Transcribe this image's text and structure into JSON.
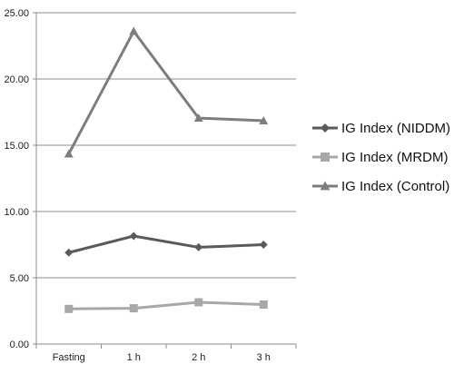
{
  "chart_data": {
    "type": "line",
    "categories": [
      "Fasting",
      "1 h",
      "2 h",
      "3 h"
    ],
    "yticks": [
      "0.00",
      "5.00",
      "10.00",
      "15.00",
      "20.00",
      "25.00"
    ],
    "ylim": [
      0,
      25
    ],
    "grid": true,
    "legend_position": "right",
    "series": [
      {
        "name": "IG Index (NIDDM)",
        "values": [
          6.9,
          8.15,
          7.3,
          7.5
        ],
        "color": "#5a5a5a",
        "marker": "diamond"
      },
      {
        "name": "IG Index (MRDM)",
        "values": [
          2.65,
          2.7,
          3.15,
          2.98
        ],
        "color": "#a8a8a8",
        "marker": "square"
      },
      {
        "name": "IG Index (Control)",
        "values": [
          14.35,
          23.6,
          17.05,
          16.85
        ],
        "color": "#7d7d7d",
        "marker": "triangle"
      }
    ]
  }
}
